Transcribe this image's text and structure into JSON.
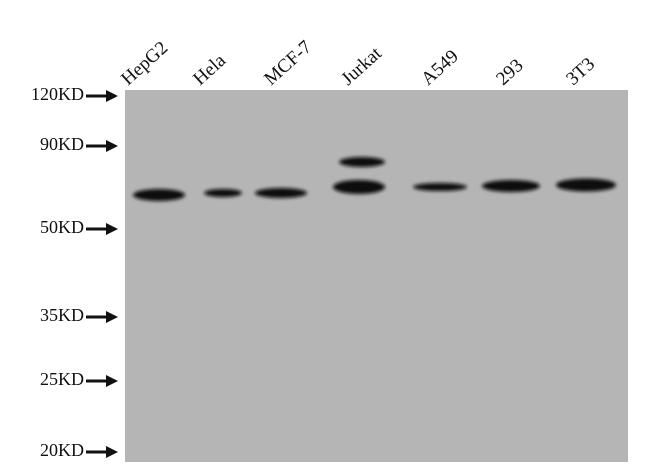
{
  "lanes": [
    "HepG2",
    "Hela",
    "MCF-7",
    "Jurkat",
    "A549",
    "293",
    "3T3"
  ],
  "markers": [
    "120KD",
    "90KD",
    "50KD",
    "35KD",
    "25KD",
    "20KD"
  ]
}
